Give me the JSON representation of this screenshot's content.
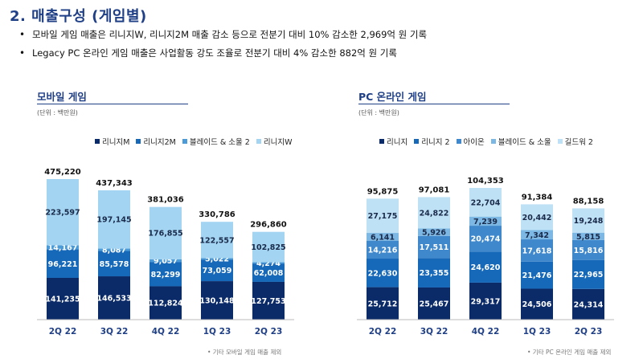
{
  "title": "2. 매출구성 (게임별)",
  "bullets": [
    "모바일 게임 매출은 리니지W, 리니지2M 매출 감소 등으로 전분기 대비 10% 감소한 2,969억 원 기록",
    "Legacy PC 온라인 게임 매출은 사업활동 강도 조율로 전분기 대비 4% 감소한 882억 원 기록"
  ],
  "bullet_mark": "•",
  "colors": {
    "accent": "#1f3f86",
    "mobile": [
      "#0b2a68",
      "#1668b8",
      "#4a9bd8",
      "#a3d4f2"
    ],
    "pc": [
      "#0b2a68",
      "#1668b8",
      "#3f88cc",
      "#7db8e4",
      "#bfe1f5"
    ]
  },
  "chart_data": [
    {
      "type": "bar",
      "stacked": true,
      "title": "모바일 게임",
      "unit": "(단위 : 백만원)",
      "categories": [
        "2Q 22",
        "3Q 22",
        "4Q 22",
        "1Q 23",
        "2Q 23"
      ],
      "series": [
        {
          "name": "리니지M",
          "values": [
            141235,
            146533,
            112824,
            130148,
            127753
          ]
        },
        {
          "name": "리니지2M",
          "values": [
            96221,
            85578,
            82299,
            73059,
            62008
          ]
        },
        {
          "name": "블레이드 & 소울 2",
          "values": [
            14167,
            8087,
            9057,
            5022,
            4274
          ]
        },
        {
          "name": "리니지W",
          "values": [
            223597,
            197145,
            176855,
            122557,
            102825
          ]
        }
      ],
      "value_labels": [
        [
          "141,235",
          "146,533",
          "112,824",
          "130,148",
          "127,753"
        ],
        [
          "96,221",
          "85,578",
          "82,299",
          "73,059",
          "62,008"
        ],
        [
          "14,167",
          "8,087",
          "9,057",
          "5,022",
          "4,274"
        ],
        [
          "223,597",
          "197,145",
          "176,855",
          "122,557",
          "102,825"
        ]
      ],
      "totals": [
        "475,220",
        "437,343",
        "381,036",
        "330,786",
        "296,860"
      ],
      "total_values": [
        475220,
        437343,
        381036,
        330786,
        296860
      ],
      "footnote": "• 기타 모바일 게임 매출 제외"
    },
    {
      "type": "bar",
      "stacked": true,
      "title": "PC 온라인 게임",
      "unit": "(단위 : 백만원)",
      "categories": [
        "2Q 22",
        "3Q 22",
        "4Q 22",
        "1Q 23",
        "2Q 23"
      ],
      "series": [
        {
          "name": "리니지",
          "values": [
            25712,
            25467,
            29317,
            24506,
            24314
          ]
        },
        {
          "name": "리니지 2",
          "values": [
            22630,
            23355,
            24620,
            21476,
            22965
          ]
        },
        {
          "name": "아이온",
          "values": [
            14216,
            17511,
            20474,
            17618,
            15816
          ]
        },
        {
          "name": "블레이드 & 소울",
          "values": [
            6141,
            5926,
            7239,
            7342,
            5815
          ]
        },
        {
          "name": "길드워 2",
          "values": [
            27175,
            24822,
            22704,
            20442,
            19248
          ]
        }
      ],
      "value_labels": [
        [
          "25,712",
          "25,467",
          "29,317",
          "24,506",
          "24,314"
        ],
        [
          "22,630",
          "23,355",
          "24,620",
          "21,476",
          "22,965"
        ],
        [
          "14,216",
          "17,511",
          "20,474",
          "17,618",
          "15,816"
        ],
        [
          "6,141",
          "5,926",
          "7,239",
          "7,342",
          "5,815"
        ],
        [
          "27,175",
          "24,822",
          "22,704",
          "20,442",
          "19,248"
        ]
      ],
      "totals": [
        "95,875",
        "97,081",
        "104,353",
        "91,384",
        "88,158"
      ],
      "total_values": [
        95875,
        97081,
        104353,
        91384,
        88158
      ],
      "footnote": "• 기타 PC 온라인 게임 매출 제외"
    }
  ]
}
